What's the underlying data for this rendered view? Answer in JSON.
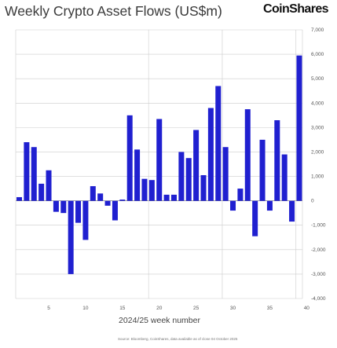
{
  "header": {
    "title": "Weekly Crypto Asset Flows (US$m)",
    "logo": "CoinShares"
  },
  "footer": {
    "source": "Source: Bloomberg, CoinShares, data available as of close 04 October 2025"
  },
  "colors": {
    "bar": "#2020d0",
    "grid": "#cccccc",
    "axis": "#888888",
    "text": "#555555"
  },
  "chart_data": {
    "type": "bar",
    "title": "Weekly Crypto Asset Flows (US$m)",
    "xlabel": "2024/25 week number",
    "ylabel": "",
    "ylim": [
      -4000,
      7000
    ],
    "grid": true,
    "y_axis_position": "right",
    "x_ticks": [
      5,
      10,
      15,
      20,
      25,
      30,
      35,
      40
    ],
    "y_ticks": [
      -4000,
      -3000,
      -2000,
      -1000,
      0,
      1000,
      2000,
      3000,
      4000,
      5000,
      6000,
      7000
    ],
    "y_tick_labels": [
      "-4,000",
      "-3,000",
      "-2,000",
      "-1,000",
      "0",
      "1,000",
      "2,000",
      "3,000",
      "4,000",
      "5,000",
      "6,000",
      "7,000"
    ],
    "categories": [
      1,
      2,
      3,
      4,
      5,
      6,
      7,
      8,
      9,
      10,
      11,
      12,
      13,
      14,
      15,
      16,
      17,
      18,
      19,
      20,
      21,
      22,
      23,
      24,
      25,
      26,
      27,
      28,
      29,
      30,
      31,
      32,
      33,
      34,
      35,
      36,
      37,
      38,
      39,
      40
    ],
    "values": [
      150,
      2400,
      2200,
      700,
      1250,
      -450,
      -500,
      -3000,
      -900,
      -1600,
      600,
      300,
      -200,
      -800,
      50,
      3500,
      2100,
      900,
      850,
      3350,
      250,
      250,
      2000,
      1750,
      2900,
      1050,
      3800,
      4700,
      2200,
      -400,
      500,
      3750,
      -1450,
      2500,
      -400,
      3300,
      1900,
      -850,
      5950,
      0
    ]
  }
}
